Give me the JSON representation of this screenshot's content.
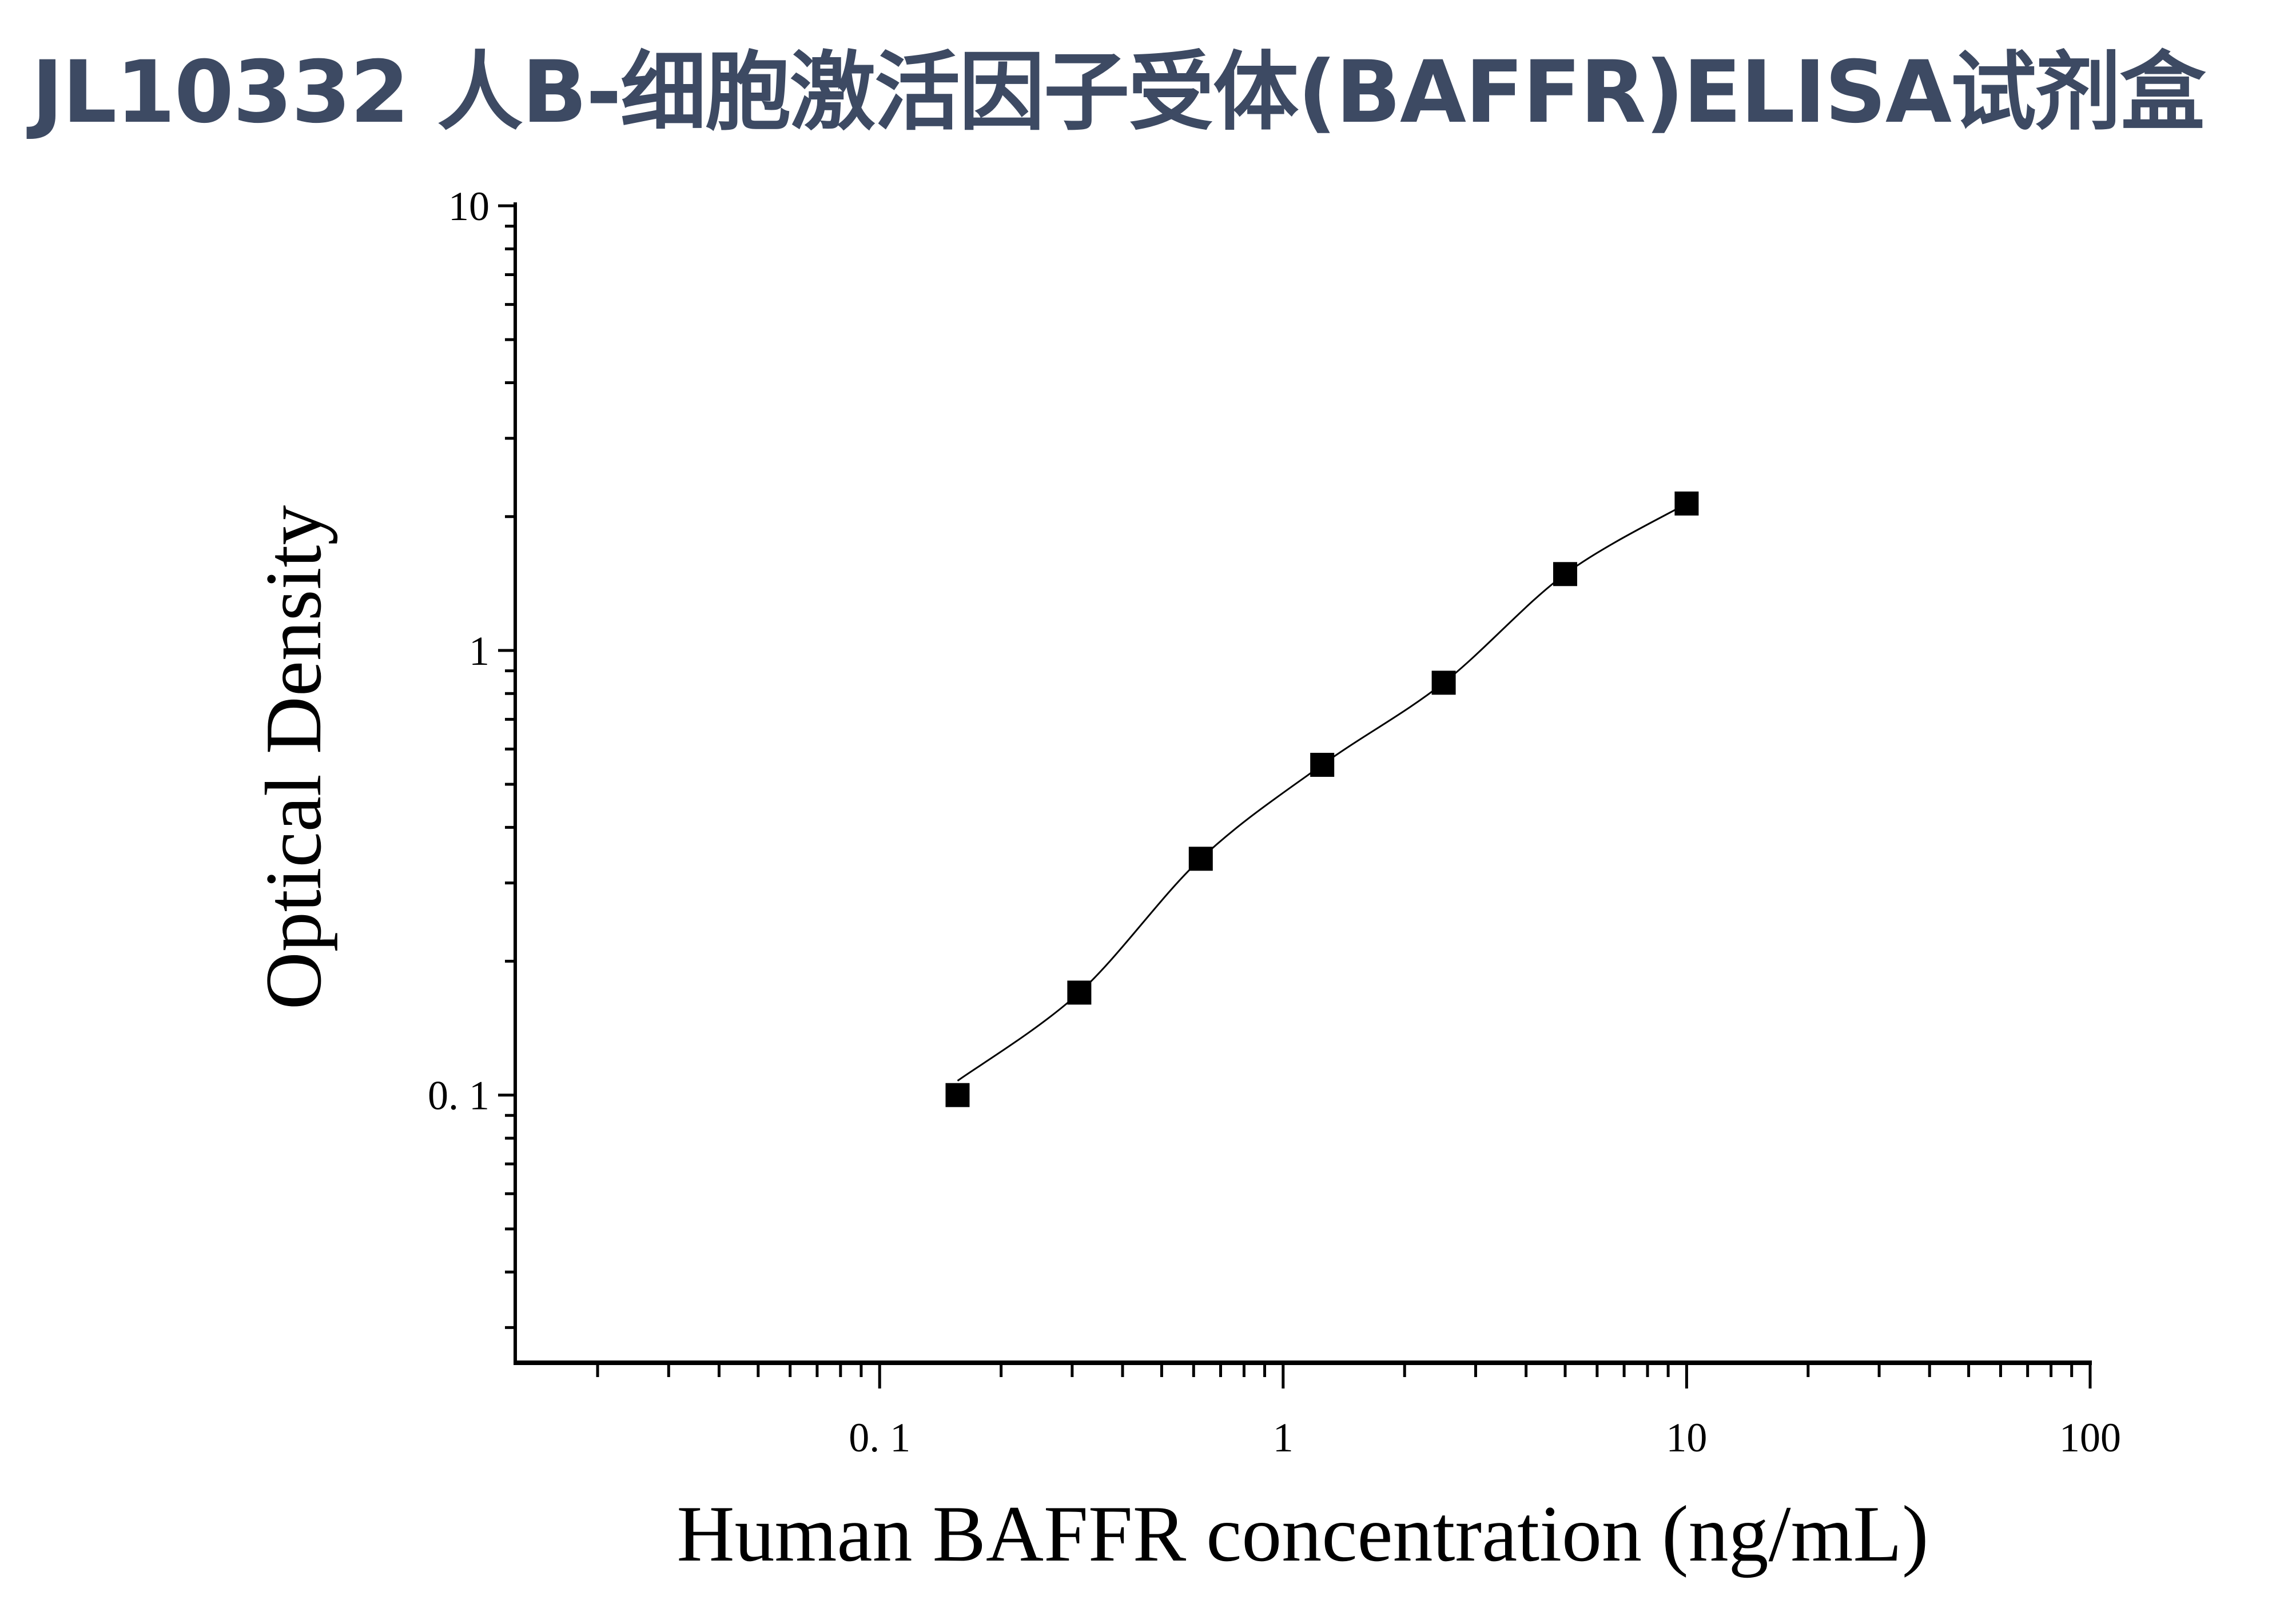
{
  "title": "JL10332 人B-细胞激活因子受体(BAFFR)ELISA试剂盒",
  "chart_data": {
    "type": "scatter",
    "title": "JL10332 人B-细胞激活因子受体(BAFFR)ELISA试剂盒",
    "xlabel": "Human BAFFR concentration (ng/mL)",
    "ylabel": "Optical Density",
    "xscale": "log",
    "yscale": "log",
    "xlim": [
      0.0125,
      100
    ],
    "ylim": [
      0.025,
      10
    ],
    "xticks": [
      {
        "value": 0.1,
        "label": "0. 1"
      },
      {
        "value": 1,
        "label": "1"
      },
      {
        "value": 10,
        "label": "10"
      },
      {
        "value": 100,
        "label": "100"
      }
    ],
    "yticks": [
      {
        "value": 0.1,
        "label": "0. 1"
      },
      {
        "value": 1,
        "label": "1"
      },
      {
        "value": 10,
        "label": "10"
      }
    ],
    "grid": false,
    "marker": "square",
    "fit_line": true,
    "color": "#000000",
    "x": [
      0.156,
      0.3125,
      0.625,
      1.25,
      2.5,
      5,
      10
    ],
    "y": [
      0.1,
      0.17,
      0.34,
      0.553,
      0.846,
      1.485,
      2.14
    ]
  }
}
